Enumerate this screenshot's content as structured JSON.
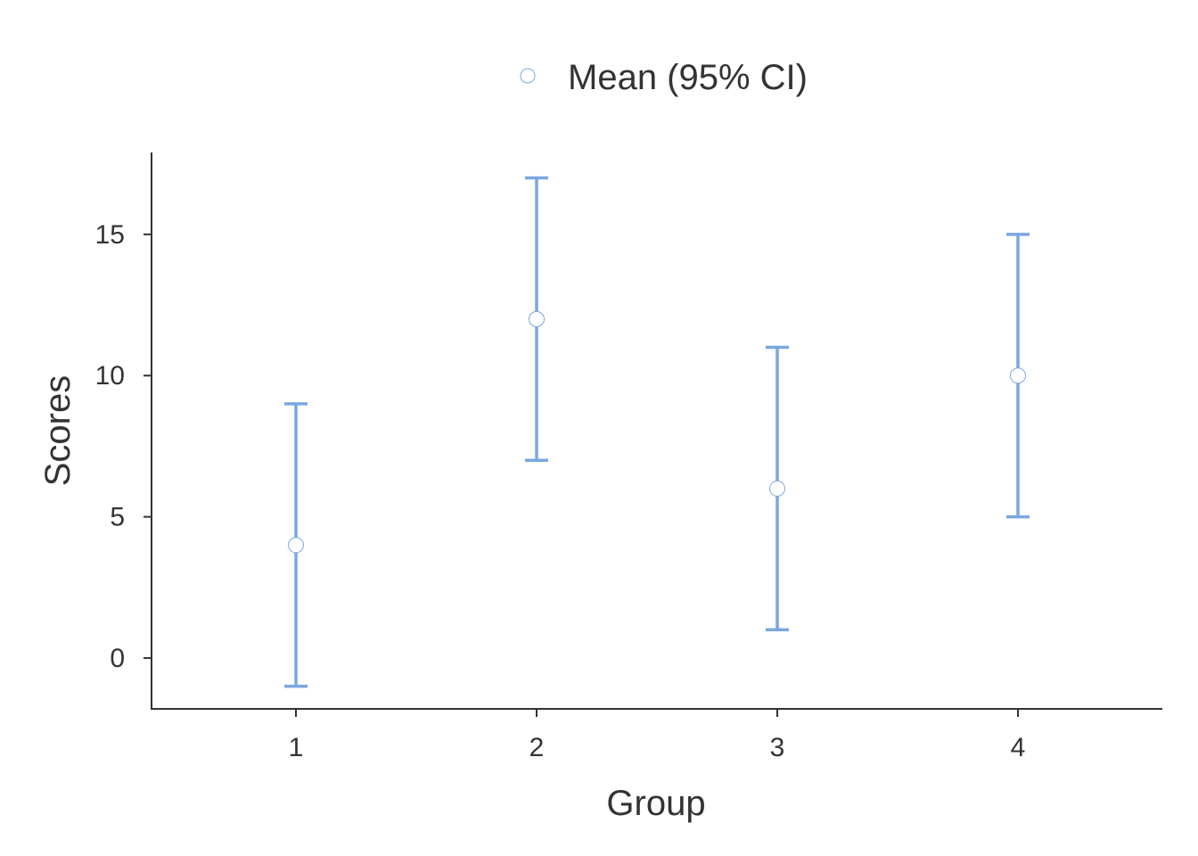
{
  "chart_data": {
    "type": "scatter",
    "subtype": "errorbar",
    "title": "",
    "xlabel": "Group",
    "ylabel": "Scores",
    "categories": [
      "1",
      "2",
      "3",
      "4"
    ],
    "series": [
      {
        "name": "Mean (95% CI)",
        "color": "#7BA7E1",
        "marker_color": "#7BA7E1",
        "mean": [
          4,
          12,
          6,
          10
        ],
        "lower": [
          -1,
          7,
          1,
          5
        ],
        "upper": [
          9,
          17,
          11,
          15
        ]
      }
    ],
    "y_ticks": [
      0,
      5,
      10,
      15
    ],
    "y_tick_labels": [
      "0",
      "5",
      "10",
      "15"
    ],
    "ylim": [
      -1.8,
      17.9
    ],
    "xlim": [
      0.4,
      4.6
    ],
    "grid": false,
    "legend_position": "top"
  }
}
